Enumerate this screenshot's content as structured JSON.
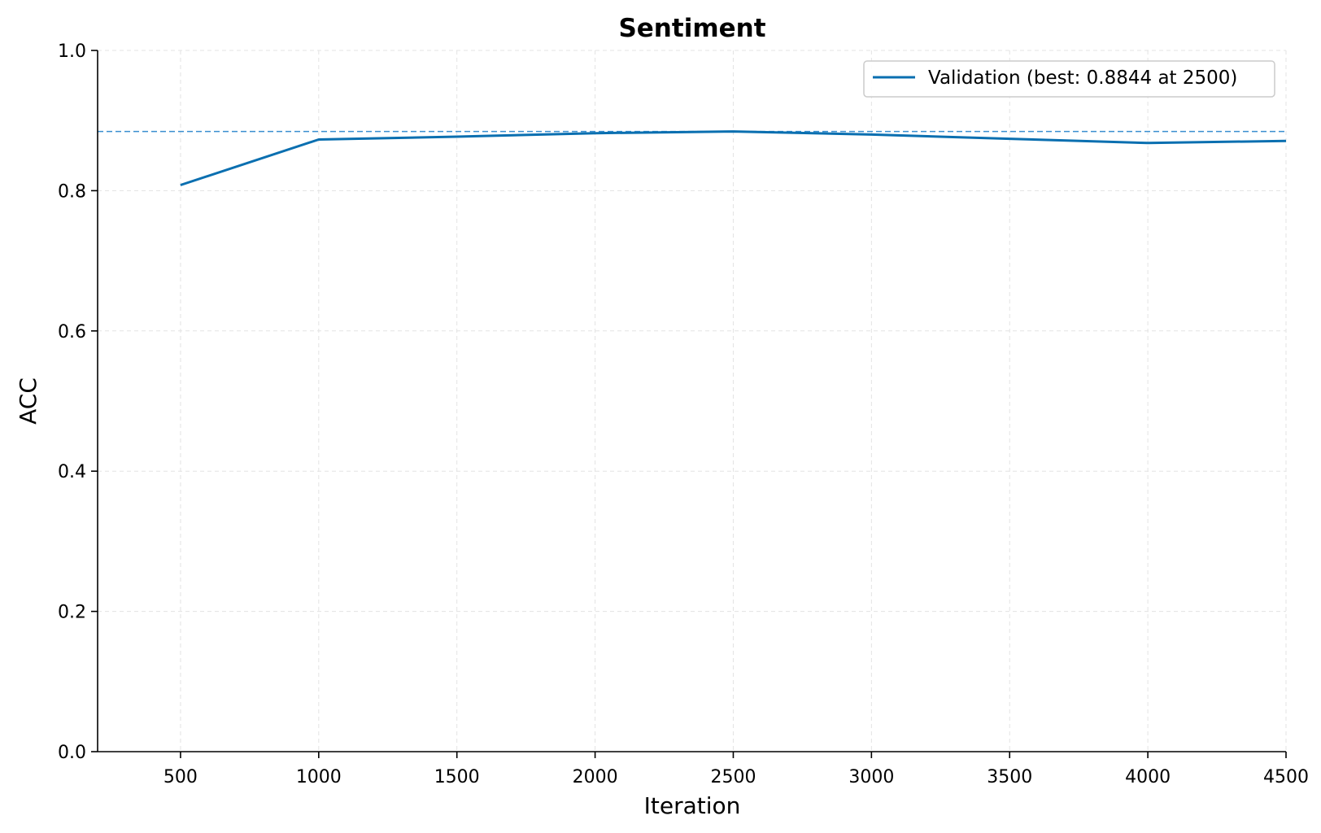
{
  "chart_data": {
    "type": "line",
    "title": "Sentiment",
    "xlabel": "Iteration",
    "ylabel": "ACC",
    "xlim": [
      200,
      4500
    ],
    "ylim": [
      0.0,
      1.0
    ],
    "xticks": [
      500,
      1000,
      1500,
      2000,
      2500,
      3000,
      3500,
      4000,
      4500
    ],
    "yticks": [
      0.0,
      0.2,
      0.4,
      0.6,
      0.8,
      1.0
    ],
    "grid": true,
    "legend_position": "top-right",
    "series": [
      {
        "name": "Validation (best: 0.8844 at 2500)",
        "color": "#0a6fb0",
        "x": [
          500,
          1000,
          1500,
          2000,
          2500,
          3000,
          3500,
          4000,
          4500
        ],
        "y": [
          0.808,
          0.873,
          0.877,
          0.882,
          0.8844,
          0.88,
          0.874,
          0.868,
          0.871
        ]
      }
    ],
    "reference_line": {
      "y": 0.8844,
      "style": "dashed",
      "color": "#3a8fd0"
    }
  }
}
